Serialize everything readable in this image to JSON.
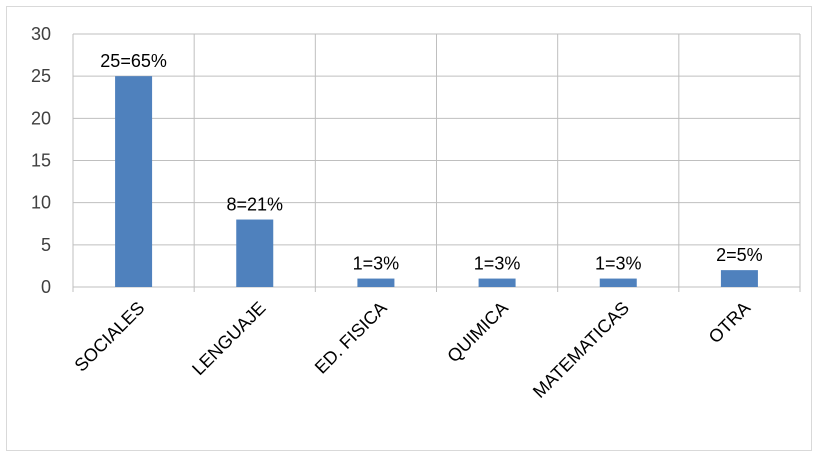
{
  "chart_data": {
    "type": "bar",
    "title": "",
    "xlabel": "",
    "ylabel": "",
    "categories": [
      "SOCIALES",
      "LENGUAJE",
      "ED. FISICA",
      "QUIMICA",
      "MATEMATICAS",
      "OTRA"
    ],
    "values": [
      25,
      8,
      1,
      1,
      1,
      2
    ],
    "data_labels": [
      "25=65%",
      "8=21%",
      "1=3%",
      "1=3%",
      "1=3%",
      "2=5%"
    ],
    "ylim": [
      0,
      30
    ],
    "yticks": [
      "0",
      "5",
      "10",
      "15",
      "20",
      "25",
      "30"
    ],
    "grid": "vertical-and-horizontal",
    "legend": "none",
    "bar_color": "#4f81bd",
    "grid_color": "#bfbfbf",
    "axis_color": "#bfbfbf"
  }
}
